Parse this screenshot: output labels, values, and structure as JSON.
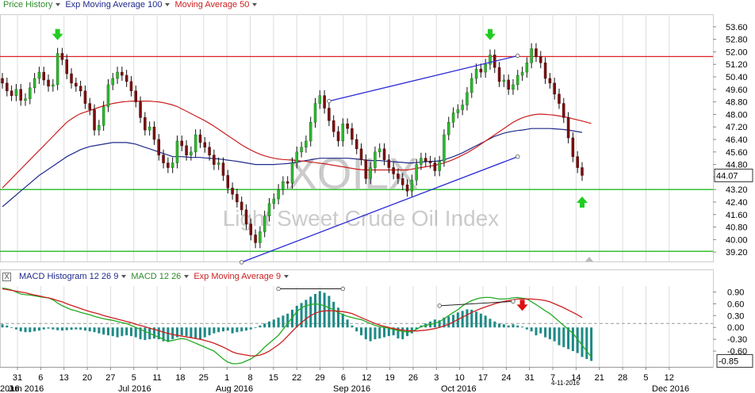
{
  "price_legend": [
    {
      "label": "Price History",
      "color": "#2e8b2e"
    },
    {
      "label": "Exp Moving Average 100",
      "color": "#1f2a8a"
    },
    {
      "label": "Moving Average 50",
      "color": "#cc1f1f"
    }
  ],
  "macd_legend": [
    {
      "label": "MACD Histogram 12 26 9",
      "color": "#1f2a8a"
    },
    {
      "label": "MACD 12 26",
      "color": "#2e8b2e"
    },
    {
      "label": "Exp Moving Average 9",
      "color": "#cc1f1f"
    }
  ],
  "close_icon": "X",
  "watermark": {
    "symbol": "XOILX",
    "name": "Light Sweet Crude Oil Index"
  },
  "current_price": "44.07",
  "current_macd": "-0.85",
  "x_day_ticks": [
    "31",
    "6",
    "13",
    "20",
    "27",
    "5",
    "11",
    "18",
    "25",
    "1",
    "8",
    "15",
    "22",
    "29",
    "6",
    "12",
    "19",
    "26",
    "3",
    "10",
    "17",
    "24",
    "31",
    "7",
    "14",
    "21",
    "28",
    "5",
    "12"
  ],
  "x_month_labels": [
    "Jun 2016",
    "Jul 2016",
    "Aug 2016",
    "Sep 2016",
    "Oct 2016",
    "Dec 2016"
  ],
  "x_partial_label": "2016",
  "date_stamp": "4-11-2016",
  "chart_data": [
    {
      "type": "candlestick",
      "title": "",
      "y_axis_ticks": [
        53.6,
        52.8,
        52.0,
        51.2,
        50.4,
        49.6,
        48.8,
        48.0,
        47.2,
        46.4,
        45.6,
        44.8,
        44.0,
        43.2,
        42.4,
        41.6,
        40.8,
        40.0,
        39.2
      ],
      "ylim": [
        38.6,
        54.3
      ],
      "grid": true,
      "legend": "top-left",
      "series_names": [
        "Price History",
        "Exp Moving Average 100",
        "Moving Average 50"
      ],
      "closes": [
        50.0,
        49.5,
        49.2,
        49.6,
        48.9,
        49.0,
        49.7,
        50.3,
        50.7,
        50.2,
        49.8,
        49.9,
        51.9,
        51.5,
        50.6,
        50.0,
        49.8,
        49.5,
        48.7,
        48.3,
        47.0,
        47.3,
        48.5,
        49.9,
        50.3,
        50.7,
        50.5,
        50.1,
        49.5,
        48.8,
        47.8,
        47.0,
        47.2,
        46.4,
        45.4,
        44.9,
        44.6,
        44.9,
        46.3,
        46.0,
        45.4,
        45.6,
        46.7,
        46.2,
        45.9,
        45.4,
        44.8,
        44.9,
        44.1,
        43.3,
        42.9,
        42.4,
        41.9,
        41.0,
        40.3,
        39.8,
        40.5,
        41.5,
        42.3,
        42.6,
        43.2,
        43.7,
        43.6,
        44.9,
        45.6,
        45.9,
        46.3,
        47.5,
        48.7,
        49.2,
        48.4,
        47.6,
        46.9,
        46.3,
        47.4,
        47.1,
        46.4,
        45.8,
        45.1,
        43.9,
        44.6,
        45.6,
        45.8,
        45.1,
        44.6,
        44.2,
        43.9,
        43.5,
        43.1,
        43.8,
        44.8,
        45.2,
        45.0,
        44.9,
        44.4,
        45.0,
        46.7,
        47.5,
        48.1,
        48.3,
        48.6,
        49.4,
        50.3,
        50.9,
        50.7,
        51.2,
        51.8,
        51.0,
        50.1,
        50.2,
        49.6,
        49.9,
        50.5,
        50.7,
        51.3,
        52.2,
        51.7,
        51.3,
        50.3,
        50.0,
        49.3,
        48.7,
        47.8,
        46.5,
        45.3,
        44.6,
        44.1
      ],
      "ema100": [
        42.1,
        42.35,
        42.6,
        42.85,
        43.1,
        43.35,
        43.6,
        43.85,
        44.1,
        44.3,
        44.5,
        44.7,
        44.9,
        45.1,
        45.3,
        45.45,
        45.6,
        45.75,
        45.85,
        45.95,
        46.0,
        46.05,
        46.1,
        46.15,
        46.2,
        46.2,
        46.2,
        46.2,
        46.15,
        46.1,
        46.0,
        45.9,
        45.8,
        45.7,
        45.6,
        45.5,
        45.4,
        45.3,
        45.3,
        45.3,
        45.28,
        45.25,
        45.25,
        45.25,
        45.22,
        45.2,
        45.18,
        45.15,
        45.12,
        45.08,
        45.04,
        45.0,
        44.95,
        44.9,
        44.85,
        44.8,
        44.8,
        44.8,
        44.8,
        44.8,
        44.82,
        44.84,
        44.86,
        44.9,
        44.95,
        45.0,
        45.05,
        45.1,
        45.15,
        45.2,
        45.2,
        45.2,
        45.2,
        45.2,
        45.2,
        45.2,
        45.18,
        45.15,
        45.12,
        45.08,
        45.05,
        45.05,
        45.05,
        45.02,
        45.0,
        44.98,
        44.95,
        44.93,
        44.9,
        44.9,
        44.92,
        44.95,
        44.98,
        45.0,
        45.0,
        45.03,
        45.1,
        45.2,
        45.3,
        45.42,
        45.55,
        45.7,
        45.85,
        46.0,
        46.15,
        46.3,
        46.45,
        46.6,
        46.7,
        46.8,
        46.87,
        46.92,
        46.97,
        47.0,
        47.05,
        47.1,
        47.1,
        47.1,
        47.1,
        47.1,
        47.08,
        47.06,
        47.03,
        47.0,
        46.95,
        46.9,
        46.85
      ],
      "sma50": [
        43.3,
        43.6,
        43.9,
        44.2,
        44.5,
        44.8,
        45.1,
        45.4,
        45.7,
        46.0,
        46.3,
        46.6,
        46.9,
        47.2,
        47.5,
        47.7,
        47.9,
        48.05,
        48.15,
        48.25,
        48.35,
        48.45,
        48.55,
        48.62,
        48.7,
        48.75,
        48.8,
        48.82,
        48.85,
        48.85,
        48.85,
        48.85,
        48.85,
        48.82,
        48.8,
        48.75,
        48.68,
        48.6,
        48.5,
        48.35,
        48.2,
        48.05,
        47.9,
        47.75,
        47.6,
        47.42,
        47.25,
        47.05,
        46.85,
        46.65,
        46.45,
        46.25,
        46.05,
        45.88,
        45.72,
        45.58,
        45.45,
        45.35,
        45.27,
        45.2,
        45.15,
        45.12,
        45.1,
        45.08,
        45.05,
        45.02,
        45.0,
        44.95,
        44.92,
        44.88,
        44.85,
        44.8,
        44.75,
        44.7,
        44.65,
        44.6,
        44.55,
        44.5,
        44.47,
        44.45,
        44.45,
        44.45,
        44.45,
        44.45,
        44.45,
        44.45,
        44.45,
        44.45,
        44.45,
        44.5,
        44.55,
        44.6,
        44.65,
        44.7,
        44.75,
        44.82,
        44.9,
        45.0,
        45.12,
        45.25,
        45.4,
        45.55,
        45.72,
        45.9,
        46.1,
        46.3,
        46.5,
        46.7,
        46.9,
        47.1,
        47.3,
        47.5,
        47.65,
        47.78,
        47.88,
        47.95,
        48.0,
        48.02,
        48.0,
        47.98,
        47.95,
        47.9,
        47.85,
        47.8,
        47.72,
        47.65,
        47.58,
        47.5,
        47.42
      ],
      "horizontal_levels": [
        {
          "value": 51.7,
          "color": "#dd2222"
        },
        {
          "value": 43.2,
          "color": "#22bb22"
        },
        {
          "value": 39.25,
          "color": "#22bb22"
        }
      ],
      "trendlines": [
        {
          "from": [
            71,
            48.85
          ],
          "to": [
            112,
            51.75
          ],
          "color": "#2a2ad8"
        },
        {
          "from": [
            52,
            38.55
          ],
          "to": [
            112,
            45.3
          ],
          "color": "#2a2ad8"
        }
      ],
      "markers": [
        {
          "index": 12,
          "dir": "down",
          "color": "#22cc22",
          "value": 53.0
        },
        {
          "index": 106,
          "dir": "down",
          "color": "#22cc22",
          "value": 53.0
        },
        {
          "index": 126,
          "dir": "up",
          "color": "#22cc22",
          "value": 42.5
        }
      ]
    },
    {
      "type": "macd",
      "title": "",
      "y_axis_ticks": [
        0.9,
        0.6,
        0.3,
        0.0,
        -0.3,
        -0.6
      ],
      "ylim": [
        -1.0,
        1.05
      ],
      "dashed_level": 0.1,
      "grid": true,
      "legend": "top-left",
      "series_names": [
        "MACD Histogram 12 26 9",
        "MACD 12 26",
        "Exp Moving Average 9"
      ],
      "histogram": [
        0.08,
        0.05,
        0.0,
        -0.05,
        -0.1,
        -0.12,
        -0.12,
        -0.1,
        -0.08,
        -0.05,
        -0.03,
        -0.05,
        -0.07,
        -0.08,
        -0.07,
        -0.06,
        -0.05,
        -0.06,
        -0.08,
        -0.1,
        -0.12,
        -0.15,
        -0.18,
        -0.2,
        -0.22,
        -0.25,
        -0.22,
        -0.2,
        -0.22,
        -0.25,
        -0.3,
        -0.32,
        -0.3,
        -0.28,
        -0.3,
        -0.35,
        -0.37,
        -0.3,
        -0.25,
        -0.2,
        -0.22,
        -0.25,
        -0.28,
        -0.3,
        -0.25,
        -0.2,
        -0.15,
        -0.12,
        -0.1,
        -0.08,
        -0.15,
        -0.12,
        -0.1,
        -0.08,
        -0.05,
        0.0,
        0.05,
        0.1,
        0.15,
        0.2,
        0.25,
        0.3,
        0.35,
        0.45,
        0.55,
        0.62,
        0.7,
        0.78,
        0.85,
        0.92,
        0.88,
        0.8,
        0.65,
        0.5,
        0.35,
        0.2,
        0.05,
        -0.1,
        -0.2,
        -0.3,
        -0.35,
        -0.3,
        -0.28,
        -0.25,
        -0.22,
        -0.2,
        -0.28,
        -0.3,
        -0.22,
        -0.15,
        -0.05,
        0.05,
        0.1,
        0.15,
        0.2,
        0.18,
        0.25,
        0.28,
        0.32,
        0.38,
        0.42,
        0.46,
        0.45,
        0.4,
        0.35,
        0.3,
        0.22,
        0.15,
        0.1,
        0.08,
        0.05,
        0.08,
        0.05,
        0.02,
        -0.05,
        -0.1,
        -0.2,
        -0.15,
        -0.25,
        -0.3,
        -0.35,
        -0.45,
        -0.5,
        -0.55,
        -0.6,
        -0.65,
        -0.75,
        -0.8,
        -0.85
      ],
      "macd": [
        1.0,
        0.98,
        0.95,
        0.9,
        0.85,
        0.83,
        0.82,
        0.8,
        0.78,
        0.76,
        0.75,
        0.7,
        0.62,
        0.55,
        0.5,
        0.45,
        0.42,
        0.38,
        0.35,
        0.32,
        0.28,
        0.25,
        0.22,
        0.2,
        0.18,
        0.15,
        0.12,
        0.1,
        0.05,
        0.0,
        -0.05,
        -0.1,
        -0.15,
        -0.2,
        -0.25,
        -0.3,
        -0.35,
        -0.33,
        -0.3,
        -0.28,
        -0.3,
        -0.35,
        -0.4,
        -0.45,
        -0.5,
        -0.55,
        -0.6,
        -0.7,
        -0.8,
        -0.88,
        -0.92,
        -0.92,
        -0.9,
        -0.85,
        -0.8,
        -0.72,
        -0.62,
        -0.5,
        -0.4,
        -0.3,
        -0.2,
        -0.05,
        0.1,
        0.25,
        0.4,
        0.5,
        0.55,
        0.58,
        0.6,
        0.58,
        0.55,
        0.5,
        0.45,
        0.38,
        0.32,
        0.28,
        0.25,
        0.22,
        0.2,
        0.15,
        0.1,
        0.05,
        0.02,
        0.0,
        -0.02,
        -0.05,
        -0.08,
        -0.1,
        -0.12,
        -0.1,
        -0.05,
        0.02,
        0.05,
        0.08,
        0.1,
        0.15,
        0.22,
        0.3,
        0.38,
        0.45,
        0.55,
        0.62,
        0.68,
        0.72,
        0.75,
        0.76,
        0.76,
        0.74,
        0.72,
        0.72,
        0.73,
        0.75,
        0.76,
        0.74,
        0.72,
        0.65,
        0.58,
        0.5,
        0.42,
        0.35,
        0.25,
        0.15,
        0.05,
        -0.05,
        -0.15,
        -0.3,
        -0.45,
        -0.6,
        -0.75
      ],
      "signal": [
        0.98,
        0.96,
        0.94,
        0.92,
        0.9,
        0.88,
        0.85,
        0.82,
        0.8,
        0.77,
        0.75,
        0.72,
        0.68,
        0.65,
        0.6,
        0.56,
        0.52,
        0.48,
        0.44,
        0.4,
        0.37,
        0.34,
        0.3,
        0.27,
        0.24,
        0.21,
        0.18,
        0.15,
        0.12,
        0.08,
        0.05,
        0.02,
        -0.02,
        -0.05,
        -0.08,
        -0.12,
        -0.15,
        -0.18,
        -0.2,
        -0.22,
        -0.24,
        -0.26,
        -0.28,
        -0.3,
        -0.33,
        -0.36,
        -0.4,
        -0.45,
        -0.5,
        -0.56,
        -0.62,
        -0.66,
        -0.68,
        -0.7,
        -0.72,
        -0.72,
        -0.7,
        -0.66,
        -0.6,
        -0.52,
        -0.44,
        -0.34,
        -0.22,
        -0.1,
        0.02,
        0.12,
        0.22,
        0.3,
        0.36,
        0.4,
        0.42,
        0.42,
        0.42,
        0.41,
        0.4,
        0.38,
        0.35,
        0.3,
        0.25,
        0.2,
        0.15,
        0.1,
        0.06,
        0.03,
        0.0,
        -0.03,
        -0.05,
        -0.07,
        -0.08,
        -0.09,
        -0.09,
        -0.08,
        -0.07,
        -0.05,
        -0.03,
        0.0,
        0.04,
        0.08,
        0.14,
        0.2,
        0.26,
        0.32,
        0.38,
        0.43,
        0.48,
        0.52,
        0.56,
        0.6,
        0.63,
        0.66,
        0.68,
        0.7,
        0.72,
        0.72,
        0.72,
        0.72,
        0.71,
        0.7,
        0.68,
        0.65,
        0.6,
        0.55,
        0.5,
        0.44,
        0.38,
        0.32,
        0.25
      ],
      "annotation_lines": [
        {
          "from": [
            60,
            0.98
          ],
          "to": [
            74,
            0.98
          ],
          "color": "#222222"
        },
        {
          "from": [
            95,
            0.55
          ],
          "to": [
            111,
            0.66
          ],
          "color": "#222222"
        }
      ],
      "markers": [
        {
          "index": 113,
          "dir": "down",
          "color": "#dd1111",
          "value": 0.52
        }
      ]
    }
  ]
}
